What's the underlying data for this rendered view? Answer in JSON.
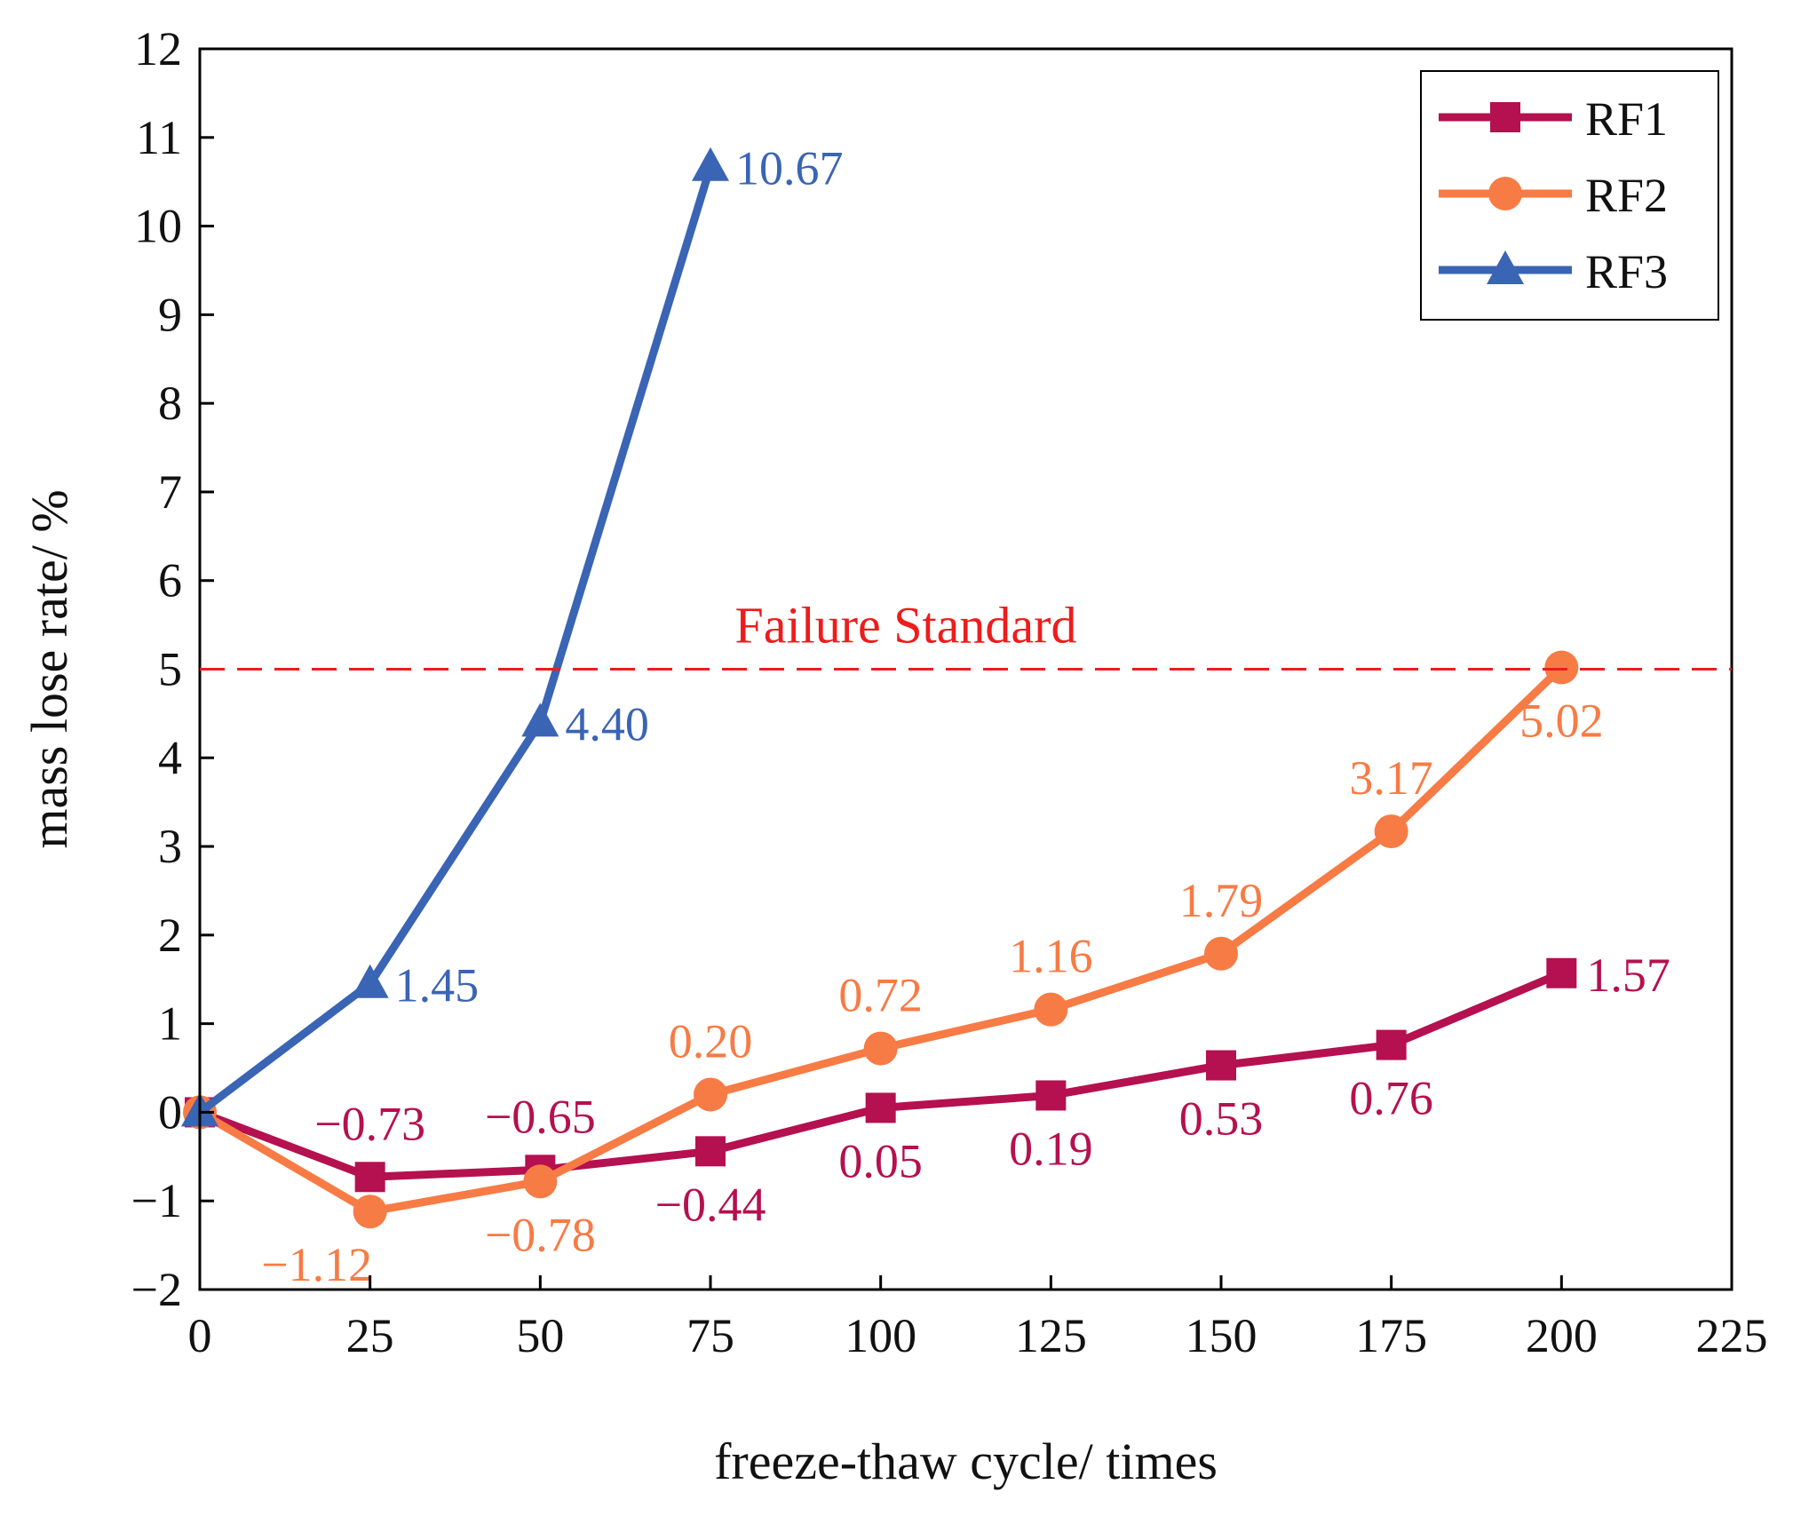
{
  "chart_data": {
    "type": "line",
    "xlabel": "freeze-thaw cycle/ times",
    "ylabel": "mass lose rate/ %",
    "xlim": [
      0,
      225
    ],
    "ylim": [
      -2,
      12
    ],
    "xticks": [
      0,
      25,
      50,
      75,
      100,
      125,
      150,
      175,
      200,
      225
    ],
    "yticks": [
      -2,
      -1,
      0,
      1,
      2,
      3,
      4,
      5,
      6,
      7,
      8,
      9,
      10,
      11,
      12
    ],
    "xtick_labels": [
      "0",
      "25",
      "50",
      "75",
      "100",
      "125",
      "150",
      "175",
      "200",
      "225"
    ],
    "ytick_labels": [
      "−2",
      "−1",
      "0",
      "1",
      "2",
      "3",
      "4",
      "5",
      "6",
      "7",
      "8",
      "9",
      "10",
      "11",
      "12"
    ],
    "grid": false,
    "legend_position": "top-right",
    "reference_line": {
      "y": 5,
      "label": "Failure Standard",
      "color": "#ee1c1c",
      "style": "dashed"
    },
    "series": [
      {
        "name": "RF1",
        "color": "#b5104f",
        "marker": "square",
        "x": [
          0,
          25,
          50,
          75,
          100,
          125,
          150,
          175,
          200
        ],
        "values": [
          0,
          -0.73,
          -0.65,
          -0.44,
          0.05,
          0.19,
          0.53,
          0.76,
          1.57
        ],
        "labels": [
          "",
          "−0.73",
          "−0.65",
          "−0.44",
          "0.05",
          "0.19",
          "0.53",
          "0.76",
          "1.57"
        ],
        "label_pos": [
          "",
          "above",
          "above",
          "below",
          "below",
          "below",
          "below",
          "below",
          "right"
        ]
      },
      {
        "name": "RF2",
        "color": "#f77b45",
        "marker": "circle",
        "x": [
          0,
          25,
          50,
          75,
          100,
          125,
          150,
          175,
          200
        ],
        "values": [
          0,
          -1.12,
          -0.78,
          0.2,
          0.72,
          1.16,
          1.79,
          3.17,
          5.02
        ],
        "labels": [
          "",
          "−1.12",
          "−0.78",
          "0.20",
          "0.72",
          "1.16",
          "1.79",
          "3.17",
          "5.02"
        ],
        "label_pos": [
          "",
          "below-left",
          "below",
          "above",
          "above",
          "above",
          "above",
          "above",
          "below"
        ]
      },
      {
        "name": "RF3",
        "color": "#3a64b4",
        "marker": "triangle",
        "x": [
          0,
          25,
          50,
          75
        ],
        "values": [
          0,
          1.45,
          4.4,
          10.67
        ],
        "labels": [
          "",
          "1.45",
          "4.40",
          "10.67"
        ],
        "label_pos": [
          "",
          "right",
          "right",
          "right"
        ]
      }
    ]
  }
}
